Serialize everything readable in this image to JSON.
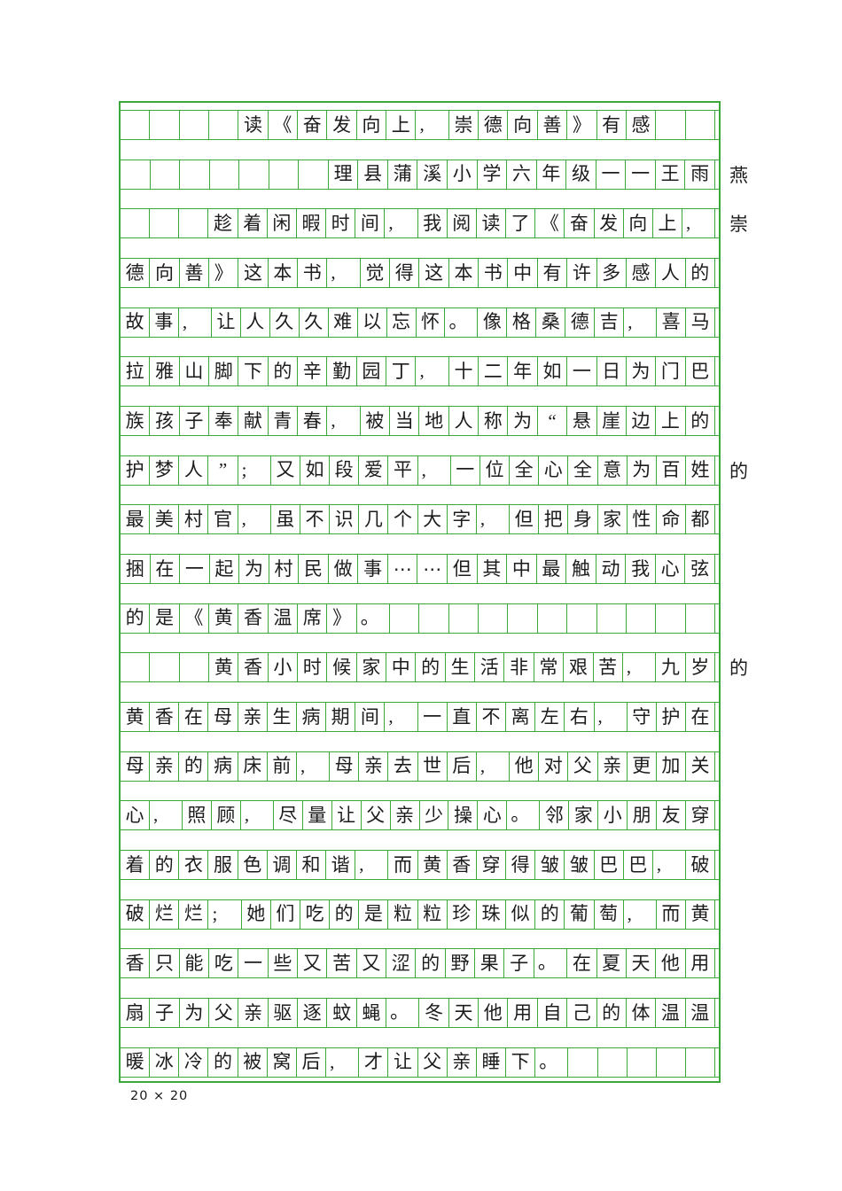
{
  "document": {
    "title_text": "读《奋发向上,崇德向善》有感",
    "byline_text": "理县蒲溪小学六年级一一王雨燕",
    "grid_size_label": "20 × 20",
    "grid_line_color": "#3aa93a",
    "text_color": "#1c1c1c"
  },
  "grid": {
    "columns": 20,
    "rows": [
      {
        "cells": [
          "",
          "",
          "",
          "",
          "读",
          "《",
          "奋",
          "发",
          "向",
          "上",
          ",",
          "崇",
          "德",
          "向",
          "善",
          "》",
          "有",
          "感",
          "",
          ""
        ],
        "overflow": ""
      },
      {
        "cells": [
          "",
          "",
          "",
          "",
          "",
          "",
          "",
          "理",
          "县",
          "蒲",
          "溪",
          "小",
          "学",
          "六",
          "年",
          "级",
          "一",
          "一",
          "王",
          "雨"
        ],
        "overflow": "燕"
      },
      {
        "cells": [
          "",
          "",
          "",
          "趁",
          "着",
          "闲",
          "暇",
          "时",
          "间",
          ",",
          "我",
          "阅",
          "读",
          "了",
          "《",
          "奋",
          "发",
          "向",
          "上",
          ","
        ],
        "overflow": "崇"
      },
      {
        "cells": [
          "德",
          "向",
          "善",
          "》",
          "这",
          "本",
          "书",
          ",",
          "觉",
          "得",
          "这",
          "本",
          "书",
          "中",
          "有",
          "许",
          "多",
          "感",
          "人",
          "的"
        ],
        "overflow": ""
      },
      {
        "cells": [
          "故",
          "事",
          ",",
          "让",
          "人",
          "久",
          "久",
          "难",
          "以",
          "忘",
          "怀",
          "。",
          "像",
          "格",
          "桑",
          "德",
          "吉",
          ",",
          "喜",
          "马"
        ],
        "overflow": ""
      },
      {
        "cells": [
          "拉",
          "雅",
          "山",
          "脚",
          "下",
          "的",
          "辛",
          "勤",
          "园",
          "丁",
          ",",
          "十",
          "二",
          "年",
          "如",
          "一",
          "日",
          "为",
          "门",
          "巴"
        ],
        "overflow": ""
      },
      {
        "cells": [
          "族",
          "孩",
          "子",
          "奉",
          "献",
          "青",
          "春",
          ",",
          "被",
          "当",
          "地",
          "人",
          "称",
          "为",
          "“",
          "悬",
          "崖",
          "边",
          "上",
          "的"
        ],
        "overflow": ""
      },
      {
        "cells": [
          "护",
          "梦",
          "人",
          "”",
          ";",
          "又",
          "如",
          "段",
          "爱",
          "平",
          ",",
          "一",
          "位",
          "全",
          "心",
          "全",
          "意",
          "为",
          "百",
          "姓"
        ],
        "overflow": "的"
      },
      {
        "cells": [
          "最",
          "美",
          "村",
          "官",
          ",",
          "虽",
          "不",
          "识",
          "几",
          "个",
          "大",
          "字",
          ",",
          "但",
          "把",
          "身",
          "家",
          "性",
          "命",
          "都"
        ],
        "overflow": ""
      },
      {
        "cells": [
          "捆",
          "在",
          "一",
          "起",
          "为",
          "村",
          "民",
          "做",
          "事",
          "⋯",
          "⋯",
          "但",
          "其",
          "中",
          "最",
          "触",
          "动",
          "我",
          "心",
          "弦"
        ],
        "overflow": ""
      },
      {
        "cells": [
          "的",
          "是",
          "《",
          "黄",
          "香",
          "温",
          "席",
          "》",
          "。",
          "",
          "",
          "",
          "",
          "",
          "",
          "",
          "",
          "",
          "",
          ""
        ],
        "overflow": ""
      },
      {
        "cells": [
          "",
          "",
          "",
          "黄",
          "香",
          "小",
          "时",
          "候",
          "家",
          "中",
          "的",
          "生",
          "活",
          "非",
          "常",
          "艰",
          "苦",
          ",",
          "九",
          "岁"
        ],
        "overflow": "的"
      },
      {
        "cells": [
          "黄",
          "香",
          "在",
          "母",
          "亲",
          "生",
          "病",
          "期",
          "间",
          ",",
          "一",
          "直",
          "不",
          "离",
          "左",
          "右",
          ",",
          "守",
          "护",
          "在"
        ],
        "overflow": ""
      },
      {
        "cells": [
          "母",
          "亲",
          "的",
          "病",
          "床",
          "前",
          ",",
          "母",
          "亲",
          "去",
          "世",
          "后",
          ",",
          "他",
          "对",
          "父",
          "亲",
          "更",
          "加",
          "关"
        ],
        "overflow": ""
      },
      {
        "cells": [
          "心",
          ",",
          "照",
          "顾",
          ",",
          "尽",
          "量",
          "让",
          "父",
          "亲",
          "少",
          "操",
          "心",
          "。",
          "邻",
          "家",
          "小",
          "朋",
          "友",
          "穿"
        ],
        "overflow": ""
      },
      {
        "cells": [
          "着",
          "的",
          "衣",
          "服",
          "色",
          "调",
          "和",
          "谐",
          ",",
          "而",
          "黄",
          "香",
          "穿",
          "得",
          "皱",
          "皱",
          "巴",
          "巴",
          ",",
          "破"
        ],
        "overflow": ""
      },
      {
        "cells": [
          "破",
          "烂",
          "烂",
          ";",
          "她",
          "们",
          "吃",
          "的",
          "是",
          "粒",
          "粒",
          "珍",
          "珠",
          "似",
          "的",
          "葡",
          "萄",
          ",",
          "而",
          "黄"
        ],
        "overflow": ""
      },
      {
        "cells": [
          "香",
          "只",
          "能",
          "吃",
          "一",
          "些",
          "又",
          "苦",
          "又",
          "涩",
          "的",
          "野",
          "果",
          "子",
          "。",
          "在",
          "夏",
          "天",
          "他",
          "用"
        ],
        "overflow": ""
      },
      {
        "cells": [
          "扇",
          "子",
          "为",
          "父",
          "亲",
          "驱",
          "逐",
          "蚊",
          "蝇",
          "。",
          "冬",
          "天",
          "他",
          "用",
          "自",
          "己",
          "的",
          "体",
          "温",
          "温"
        ],
        "overflow": ""
      },
      {
        "cells": [
          "暖",
          "冰",
          "冷",
          "的",
          "被",
          "窝",
          "后",
          ",",
          "才",
          "让",
          "父",
          "亲",
          "睡",
          "下",
          "。",
          "",
          "",
          "",
          "",
          ""
        ],
        "overflow": ""
      }
    ]
  }
}
